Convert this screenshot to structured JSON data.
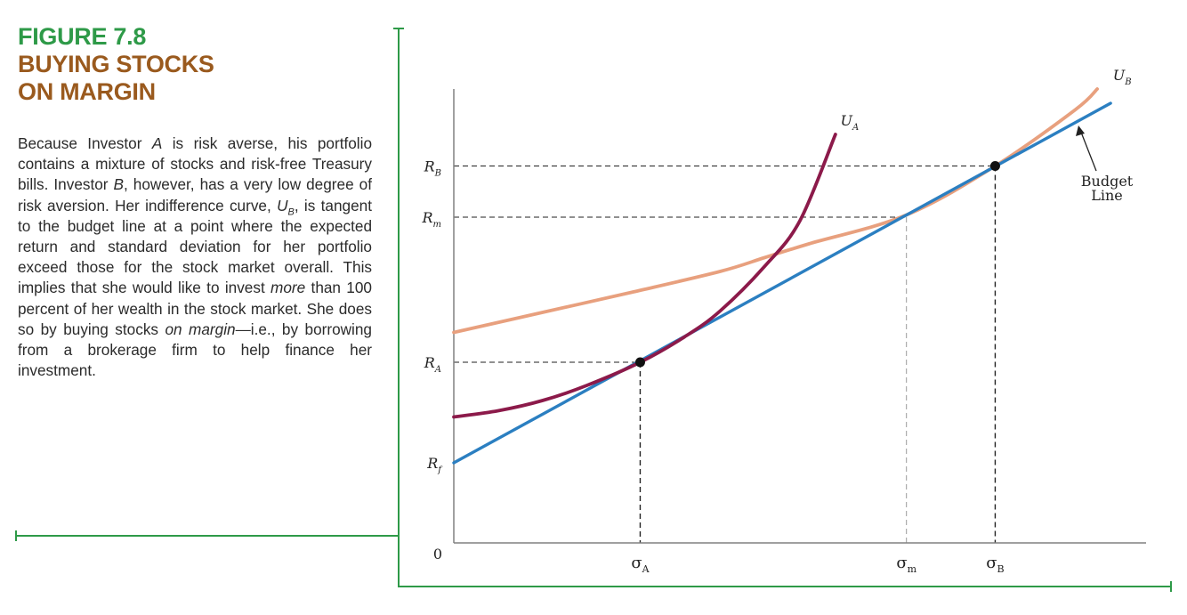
{
  "figure": {
    "number": "FIGURE 7.8",
    "title_lines": [
      "BUYING STOCKS",
      "ON MARGIN"
    ],
    "caption": {
      "part1": "Because Investor ",
      "investor_a": "A",
      "part2": " is risk averse, his portfolio contains a mixture of stocks and risk-free Treasury bills. Investor ",
      "investor_b": "B",
      "part3": ", however, has a very low degree of risk aversion. Her indifference curve, ",
      "u_symbol": "U",
      "u_sub": "B",
      "part4": ", is tangent to the budget line at a point where the expected return and standard deviation for her portfolio exceed those for the stock market overall. This implies that she would like to invest ",
      "emph_more": "more",
      "part5": " than 100 percent of her wealth in the stock market. She does so by buying stocks ",
      "emph_margin": "on margin",
      "part6": "—i.e., by borrowing from a brokerage firm to help finance her investment."
    }
  },
  "colors": {
    "frame": "#2e9a48",
    "budget_line": "#2b7fc1",
    "u_a": "#8c1a4a",
    "u_b": "#e8a07e",
    "axis": "#808080",
    "guide": "#222222"
  },
  "chart_data": {
    "type": "line",
    "title": "",
    "xlabel": "",
    "ylabel": "",
    "origin_label": "0",
    "xlim": [
      0,
      7.8
    ],
    "ylim": [
      0,
      10.2
    ],
    "x_ticks": [
      {
        "symbol": "σ",
        "sub": "A",
        "value": 2.1
      },
      {
        "symbol": "σ",
        "sub": "m",
        "value": 5.1
      },
      {
        "symbol": "σ",
        "sub": "B",
        "value": 6.1
      }
    ],
    "y_ticks": [
      {
        "symbol": "R",
        "sub": "B",
        "value": 8.47
      },
      {
        "symbol": "R",
        "sub": "m",
        "value": 7.32
      },
      {
        "symbol": "R",
        "sub": "A",
        "value": 4.06
      },
      {
        "symbol": "R",
        "sub": "f",
        "value": 1.8
      }
    ],
    "series": [
      {
        "id": "budget-line",
        "x": [
          0,
          2.1,
          5.1,
          6.1,
          7.4
        ],
        "y": [
          1.8,
          4.06,
          7.32,
          8.47,
          9.88
        ]
      },
      {
        "id": "u-a",
        "name_symbol": "U",
        "name_sub": "A",
        "x": [
          0,
          0.5,
          1.0,
          1.5,
          2.1,
          2.6,
          3.0,
          3.5,
          3.9,
          4.3
        ],
        "y": [
          2.83,
          2.97,
          3.2,
          3.54,
          4.06,
          4.63,
          5.21,
          6.21,
          7.24,
          9.18
        ]
      },
      {
        "id": "u-b",
        "name_symbol": "U",
        "name_sub": "B",
        "x": [
          0,
          1.0,
          2.0,
          3.0,
          3.5,
          4.0,
          5.1,
          6.1,
          7.0,
          7.25
        ],
        "y": [
          4.73,
          5.18,
          5.63,
          6.1,
          6.41,
          6.72,
          7.37,
          8.47,
          9.73,
          10.2
        ]
      }
    ],
    "points": [
      {
        "id": "point-a",
        "x": 2.1,
        "y": 4.06
      },
      {
        "id": "point-b",
        "x": 6.1,
        "y": 8.47
      }
    ],
    "annotation": {
      "lines": [
        "Budget",
        "Line"
      ]
    }
  }
}
